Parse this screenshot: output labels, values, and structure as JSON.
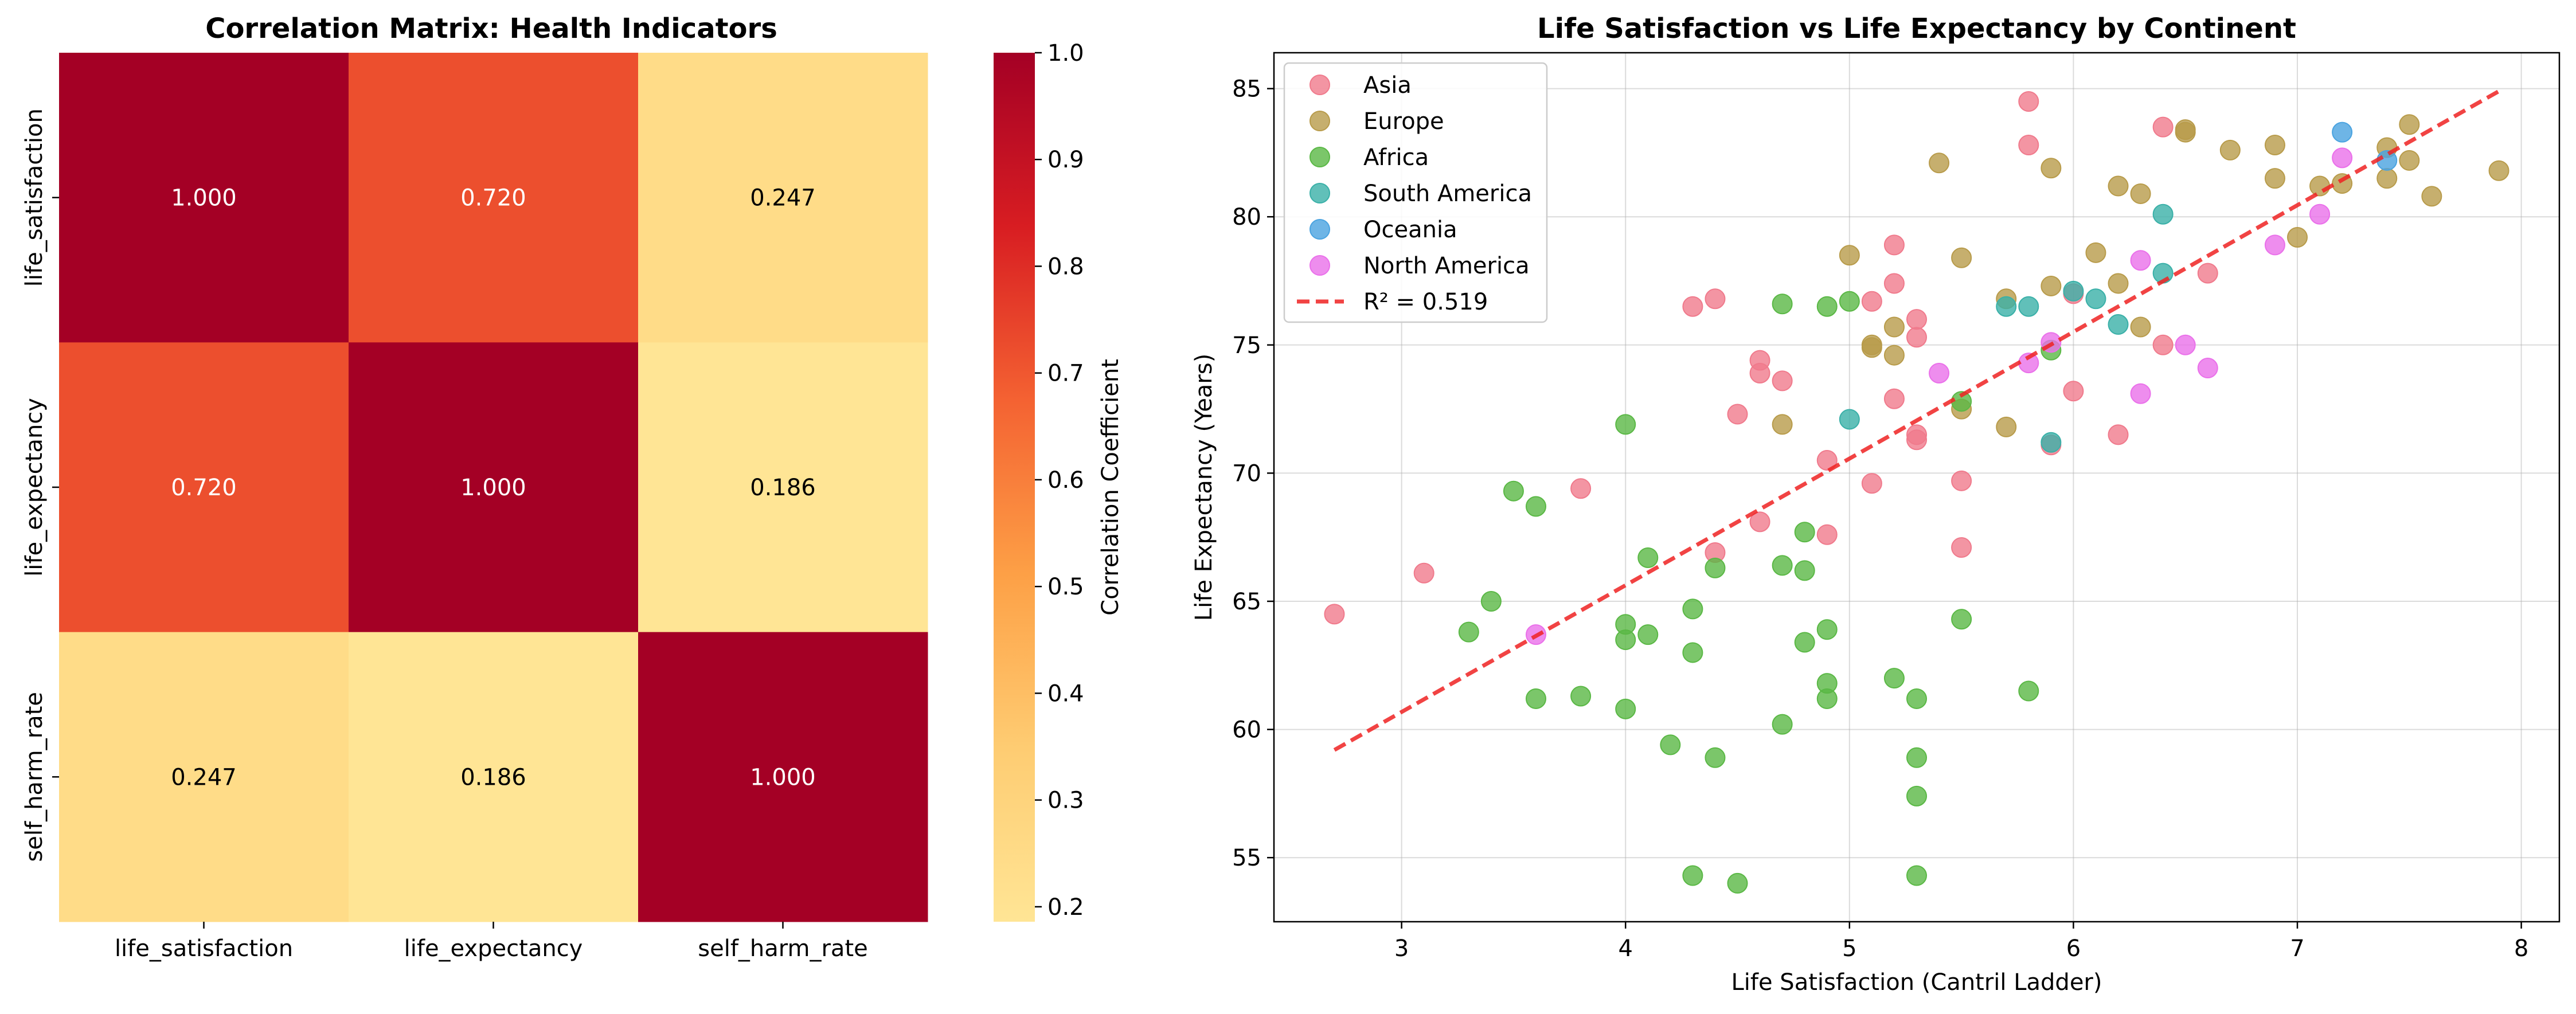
{
  "chart_data": [
    {
      "type": "heatmap",
      "title": "Correlation Matrix: Health Indicators",
      "x_categories": [
        "life_satisfaction",
        "life_expectancy",
        "self_harm_rate"
      ],
      "y_categories": [
        "life_satisfaction",
        "life_expectancy",
        "self_harm_rate"
      ],
      "values": [
        [
          1.0,
          0.72,
          0.247
        ],
        [
          0.72,
          1.0,
          0.186
        ],
        [
          0.247,
          0.186,
          1.0
        ]
      ],
      "value_labels": [
        [
          "1.000",
          "0.720",
          "0.247"
        ],
        [
          "0.720",
          "1.000",
          "0.186"
        ],
        [
          "0.247",
          "0.186",
          "1.000"
        ]
      ],
      "colorbar": {
        "label": "Correlation Coefficient",
        "range": [
          0.186,
          1.0
        ],
        "ticks": [
          "0.2",
          "0.3",
          "0.4",
          "0.5",
          "0.6",
          "0.7",
          "0.8",
          "0.9",
          "1.0"
        ],
        "colormap": "YlOrRd"
      }
    },
    {
      "type": "scatter",
      "title": "Life Satisfaction vs Life Expectancy by Continent",
      "xlabel": "Life Satisfaction (Cantril Ladder)",
      "ylabel": "Life Expectancy (Years)",
      "xlim": [
        2.43,
        8.17
      ],
      "ylim": [
        52.5,
        86.4
      ],
      "x_ticks": [
        "3",
        "4",
        "5",
        "6",
        "7",
        "8"
      ],
      "y_ticks": [
        "55",
        "60",
        "65",
        "70",
        "75",
        "80",
        "85"
      ],
      "grid": true,
      "legend_position": "top-left",
      "series": [
        {
          "name": "Asia",
          "color": "#f07a8c",
          "points": [
            [
              2.7,
              64.5
            ],
            [
              3.1,
              66.1
            ],
            [
              3.8,
              69.4
            ],
            [
              4.3,
              76.5
            ],
            [
              4.4,
              76.8
            ],
            [
              4.4,
              66.9
            ],
            [
              4.5,
              72.3
            ],
            [
              4.6,
              74.4
            ],
            [
              4.6,
              73.9
            ],
            [
              4.6,
              68.1
            ],
            [
              4.7,
              73.6
            ],
            [
              4.9,
              70.5
            ],
            [
              4.9,
              67.6
            ],
            [
              5.1,
              76.7
            ],
            [
              5.1,
              69.6
            ],
            [
              5.2,
              78.9
            ],
            [
              5.2,
              77.4
            ],
            [
              5.2,
              72.9
            ],
            [
              5.3,
              76.0
            ],
            [
              5.3,
              75.3
            ],
            [
              5.3,
              71.5
            ],
            [
              5.3,
              71.3
            ],
            [
              5.5,
              69.7
            ],
            [
              5.5,
              67.1
            ],
            [
              5.8,
              84.5
            ],
            [
              5.8,
              82.8
            ],
            [
              5.9,
              71.1
            ],
            [
              6.0,
              77.0
            ],
            [
              6.0,
              73.2
            ],
            [
              6.2,
              71.5
            ],
            [
              6.4,
              83.5
            ],
            [
              6.4,
              75.0
            ],
            [
              6.6,
              77.8
            ]
          ]
        },
        {
          "name": "Europe",
          "color": "#b89b4a",
          "points": [
            [
              4.7,
              71.9
            ],
            [
              5.0,
              78.5
            ],
            [
              5.1,
              75.0
            ],
            [
              5.1,
              74.9
            ],
            [
              5.2,
              75.7
            ],
            [
              5.2,
              74.6
            ],
            [
              5.4,
              82.1
            ],
            [
              5.5,
              78.4
            ],
            [
              5.5,
              72.5
            ],
            [
              5.7,
              76.8
            ],
            [
              5.7,
              71.8
            ],
            [
              5.9,
              81.9
            ],
            [
              5.9,
              77.3
            ],
            [
              6.1,
              78.6
            ],
            [
              6.2,
              81.2
            ],
            [
              6.2,
              77.4
            ],
            [
              6.3,
              80.9
            ],
            [
              6.3,
              75.7
            ],
            [
              6.5,
              83.4
            ],
            [
              6.5,
              83.3
            ],
            [
              6.7,
              82.6
            ],
            [
              6.9,
              82.8
            ],
            [
              6.9,
              81.5
            ],
            [
              7.0,
              79.2
            ],
            [
              7.1,
              81.2
            ],
            [
              7.2,
              81.3
            ],
            [
              7.4,
              82.7
            ],
            [
              7.4,
              81.5
            ],
            [
              7.5,
              83.6
            ],
            [
              7.5,
              82.2
            ],
            [
              7.6,
              80.8
            ],
            [
              7.9,
              81.8
            ]
          ]
        },
        {
          "name": "Africa",
          "color": "#5ab845",
          "points": [
            [
              3.3,
              63.8
            ],
            [
              3.4,
              65.0
            ],
            [
              3.5,
              69.3
            ],
            [
              3.6,
              68.7
            ],
            [
              3.6,
              61.2
            ],
            [
              3.8,
              61.3
            ],
            [
              4.0,
              71.9
            ],
            [
              4.0,
              64.1
            ],
            [
              4.0,
              63.5
            ],
            [
              4.0,
              60.8
            ],
            [
              4.1,
              66.7
            ],
            [
              4.1,
              63.7
            ],
            [
              4.2,
              59.4
            ],
            [
              4.3,
              64.7
            ],
            [
              4.3,
              63.0
            ],
            [
              4.3,
              54.3
            ],
            [
              4.4,
              66.3
            ],
            [
              4.4,
              58.9
            ],
            [
              4.5,
              54.0
            ],
            [
              4.7,
              76.6
            ],
            [
              4.7,
              66.4
            ],
            [
              4.7,
              60.2
            ],
            [
              4.8,
              67.7
            ],
            [
              4.8,
              66.2
            ],
            [
              4.8,
              63.4
            ],
            [
              4.9,
              76.5
            ],
            [
              4.9,
              63.9
            ],
            [
              4.9,
              61.8
            ],
            [
              4.9,
              61.2
            ],
            [
              5.0,
              76.7
            ],
            [
              5.2,
              62.0
            ],
            [
              5.3,
              61.2
            ],
            [
              5.3,
              58.9
            ],
            [
              5.3,
              57.4
            ],
            [
              5.3,
              54.3
            ],
            [
              5.5,
              72.8
            ],
            [
              5.5,
              64.3
            ],
            [
              5.8,
              61.5
            ],
            [
              5.9,
              74.8
            ]
          ]
        },
        {
          "name": "South America",
          "color": "#3ab0a8",
          "points": [
            [
              5.0,
              72.1
            ],
            [
              5.7,
              76.5
            ],
            [
              5.8,
              76.5
            ],
            [
              5.9,
              71.2
            ],
            [
              6.0,
              77.1
            ],
            [
              6.1,
              76.8
            ],
            [
              6.2,
              75.8
            ],
            [
              6.4,
              80.1
            ],
            [
              6.4,
              77.8
            ]
          ]
        },
        {
          "name": "Oceania",
          "color": "#4aa3e0",
          "points": [
            [
              7.2,
              83.3
            ],
            [
              7.4,
              82.2
            ]
          ]
        },
        {
          "name": "North America",
          "color": "#ea70ea",
          "points": [
            [
              3.6,
              63.7
            ],
            [
              5.4,
              73.9
            ],
            [
              5.8,
              74.3
            ],
            [
              5.9,
              75.1
            ],
            [
              6.3,
              78.3
            ],
            [
              6.3,
              73.1
            ],
            [
              6.5,
              75.0
            ],
            [
              6.6,
              74.1
            ],
            [
              6.9,
              78.9
            ],
            [
              7.1,
              80.1
            ],
            [
              7.2,
              82.3
            ]
          ]
        }
      ],
      "regression": {
        "label": "R² = 0.519",
        "color": "#ee2222",
        "x": [
          2.7,
          7.9
        ],
        "y": [
          59.2,
          84.9
        ]
      }
    }
  ]
}
